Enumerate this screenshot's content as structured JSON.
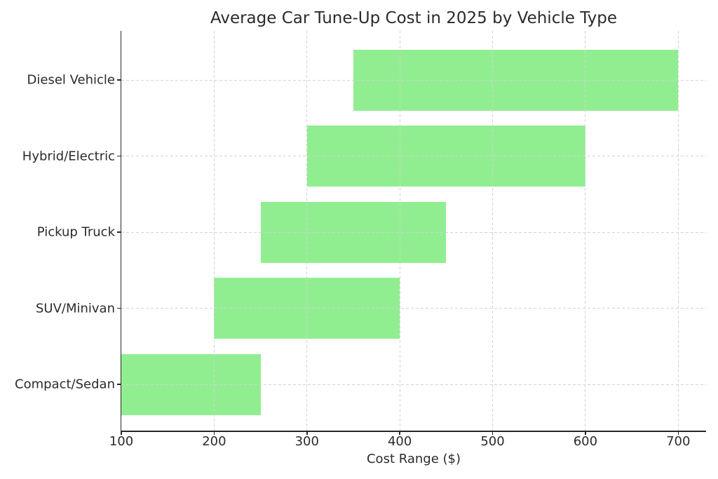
{
  "chart_data": {
    "type": "bar",
    "orientation": "horizontal",
    "title": "Average Car Tune-Up Cost in 2025 by Vehicle Type",
    "xlabel": "Cost Range ($)",
    "ylabel": "",
    "categories": [
      "Diesel Vehicle",
      "Hybrid/Electric",
      "Pickup Truck",
      "SUV/Minivan",
      "Compact/Sedan"
    ],
    "ranges": [
      [
        350,
        700
      ],
      [
        300,
        600
      ],
      [
        250,
        450
      ],
      [
        200,
        400
      ],
      [
        100,
        250
      ]
    ],
    "xlim": [
      100,
      730
    ],
    "xticks": [
      100,
      200,
      300,
      400,
      500,
      600,
      700
    ],
    "grid": true,
    "grid_style": "dashed",
    "grid_over_bars": true,
    "legend": "none",
    "colors": {
      "bar": "#90EE90",
      "grid": "#d3d3d3",
      "axis": "#262626",
      "text": "#2b2b2b",
      "background": "#ffffff"
    }
  }
}
